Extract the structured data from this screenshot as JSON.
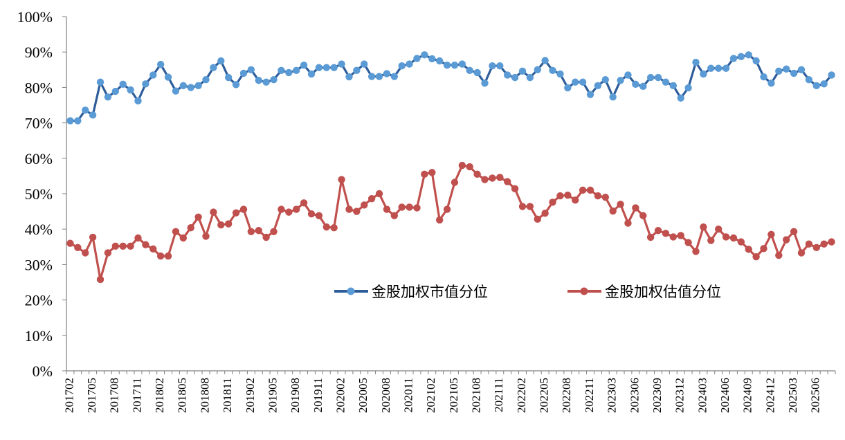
{
  "chart_data": {
    "type": "line",
    "title": "",
    "xlabel": "",
    "ylabel": "",
    "ylim": [
      0,
      100
    ],
    "yticks": [
      "0%",
      "10%",
      "20%",
      "30%",
      "40%",
      "50%",
      "60%",
      "70%",
      "80%",
      "90%",
      "100%"
    ],
    "xtick_labels": [
      "201702",
      "201705",
      "201708",
      "201711",
      "201802",
      "201805",
      "201808",
      "201811",
      "201902",
      "201905",
      "201908",
      "201911",
      "202002",
      "202005",
      "202008",
      "202011",
      "202102",
      "202105",
      "202108",
      "202111",
      "202202",
      "202205",
      "202208",
      "202211",
      "202303",
      "202306",
      "202309",
      "202312",
      "202403",
      "202406",
      "202409",
      "202412",
      "202503",
      "202506"
    ],
    "grid": false,
    "legend_position": "center-right",
    "x_start": "201702",
    "series": [
      {
        "name": "金股加权市值分位",
        "color": "#2e5d9a",
        "marker_color": "#5b9bd5",
        "values": [
          70.6,
          70.6,
          73.6,
          72.2,
          81.5,
          77.3,
          78.9,
          80.9,
          79.3,
          76.2,
          81.0,
          83.5,
          86.5,
          82.9,
          79.0,
          80.5,
          80.0,
          80.5,
          82.2,
          85.6,
          87.5,
          82.8,
          80.8,
          84.0,
          85.0,
          82.0,
          81.5,
          82.2,
          84.8,
          84.2,
          84.8,
          86.3,
          83.8,
          85.6,
          85.6,
          85.6,
          86.6,
          83.0,
          84.8,
          86.6,
          83.1,
          83.1,
          83.9,
          83.1,
          86.1,
          86.6,
          88.2,
          89.2,
          88.1,
          87.5,
          86.3,
          86.3,
          86.6,
          84.8,
          84.2,
          81.2,
          86.1,
          86.1,
          83.5,
          82.8,
          84.6,
          82.8,
          85.0,
          87.6,
          84.8,
          83.8,
          79.9,
          81.5,
          81.5,
          78.0,
          80.5,
          82.2,
          77.3,
          82.0,
          83.5,
          80.9,
          80.3,
          82.8,
          82.8,
          81.5,
          80.5,
          77.0,
          79.9,
          87.1,
          83.8,
          85.4,
          85.4,
          85.4,
          88.2,
          88.7,
          89.2,
          87.5,
          83.0,
          81.2,
          84.6,
          85.2,
          84.0,
          85.0,
          82.2,
          80.5,
          81.0,
          83.5
        ]
      },
      {
        "name": "金股加权估值分位",
        "color": "#c0504d",
        "marker_color": "#c0504d",
        "values": [
          36.0,
          34.8,
          33.3,
          37.7,
          25.8,
          33.3,
          35.2,
          35.2,
          35.2,
          37.5,
          35.6,
          34.4,
          32.4,
          32.4,
          39.3,
          37.5,
          40.4,
          43.4,
          38.0,
          44.8,
          41.2,
          41.5,
          44.6,
          45.6,
          39.3,
          39.6,
          37.7,
          39.3,
          45.6,
          44.8,
          45.6,
          47.4,
          44.3,
          43.8,
          40.6,
          40.4,
          54.0,
          45.6,
          45.0,
          46.8,
          48.6,
          50.0,
          45.6,
          43.8,
          46.2,
          46.2,
          46.0,
          55.5,
          56.0,
          42.6,
          45.6,
          53.2,
          58.0,
          57.6,
          55.5,
          54.0,
          54.4,
          54.6,
          53.4,
          51.4,
          46.4,
          46.4,
          42.8,
          44.5,
          47.6,
          49.4,
          49.6,
          48.2,
          51.0,
          51.0,
          49.4,
          49.0,
          45.1,
          47.0,
          41.7,
          46.0,
          43.8,
          37.7,
          39.6,
          38.8,
          37.8,
          38.2,
          36.2,
          33.7,
          40.6,
          36.8,
          40.0,
          37.8,
          37.5,
          36.4,
          34.3,
          32.2,
          34.5,
          38.5,
          32.6,
          37.0,
          39.3,
          33.3,
          35.8,
          34.8,
          35.8,
          36.4
        ]
      }
    ]
  }
}
